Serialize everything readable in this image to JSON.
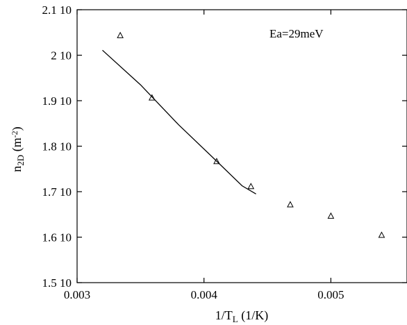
{
  "chart_data": {
    "type": "scatter",
    "xlabel": {
      "main": "1/T",
      "sub": "L",
      "tail": " (1/K)"
    },
    "ylabel": {
      "main": "n",
      "sub": "2D",
      "mid": " (m",
      "sup": "-2",
      "tail": ")"
    },
    "xlim": [
      0.003,
      0.0056
    ],
    "ylim": [
      15000000000.0,
      21000000000.0
    ],
    "x_ticks": [
      0.003,
      0.004,
      0.005
    ],
    "x_tick_labels": [
      "0.003",
      "0.004",
      "0.005"
    ],
    "y_ticks": [
      15000000000.0,
      16000000000.0,
      17000000000.0,
      18000000000.0,
      19000000000.0,
      20000000000.0,
      21000000000.0
    ],
    "y_tick_labels": [
      "1.5 10",
      "1.6 10",
      "1.7 10",
      "1.8 10",
      "1.9 10",
      "2 10",
      "2.1 10"
    ],
    "annotation": "Ea=29meV",
    "series": [
      {
        "marker": "triangle-open",
        "x": [
          0.00334,
          0.00359,
          0.0041,
          0.00437,
          0.00468,
          0.005,
          0.0054
        ],
        "y": [
          20430000000.0,
          19060000000.0,
          17660000000.0,
          17110000000.0,
          16710000000.0,
          16460000000.0,
          16040000000.0
        ]
      },
      {
        "style": "line",
        "x": [
          0.0032,
          0.0035,
          0.0038,
          0.0041,
          0.0043,
          0.00441
        ],
        "y": [
          20110000000.0,
          19350000000.0,
          18470000000.0,
          17670000000.0,
          17130000000.0,
          16950000000.0
        ]
      }
    ],
    "grid": false
  }
}
